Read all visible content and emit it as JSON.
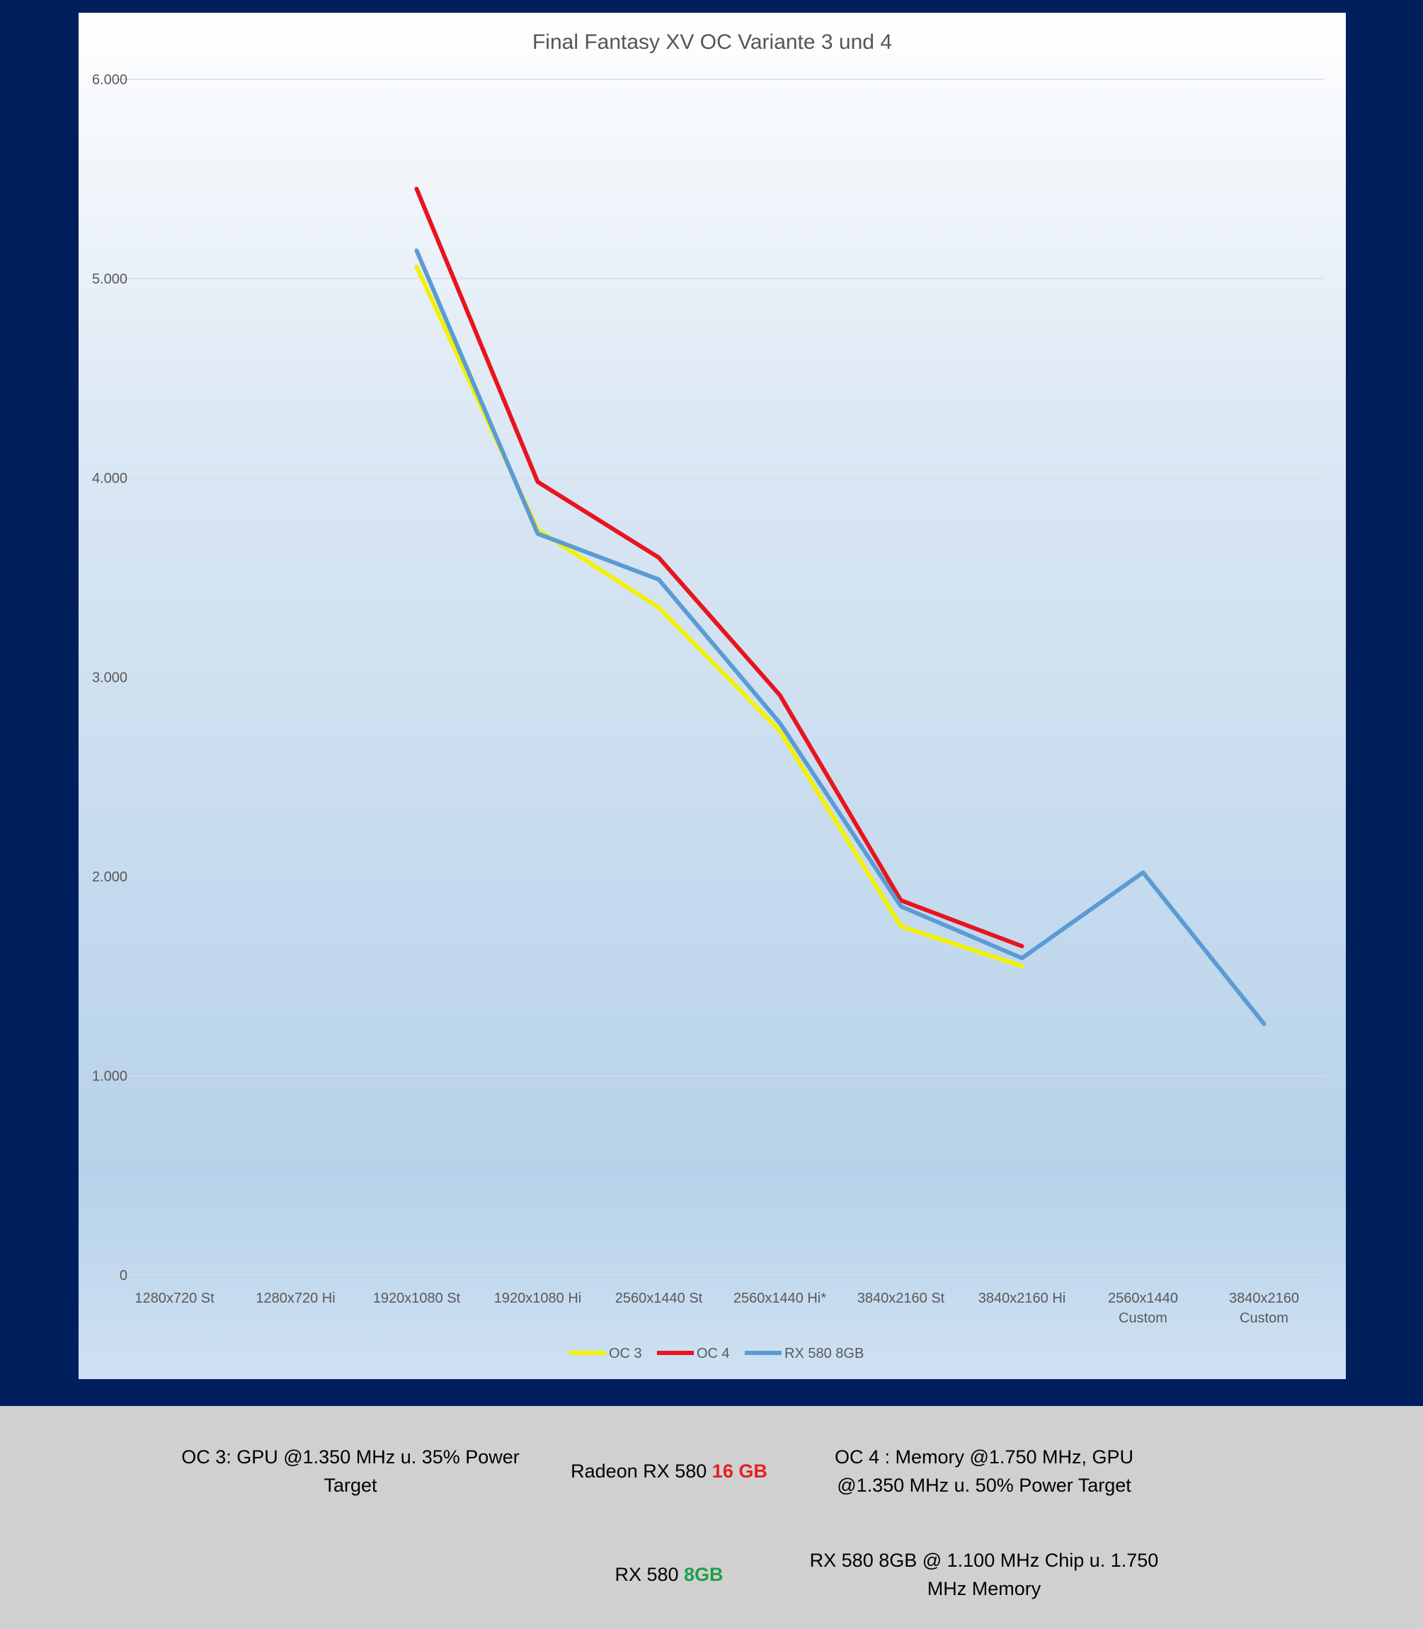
{
  "chart_data": {
    "type": "line",
    "title": "Final Fantasy XV OC Variante 3 und 4",
    "categories": [
      [
        "1280x720 St"
      ],
      [
        "1280x720 Hi"
      ],
      [
        "1920x1080 St"
      ],
      [
        "1920x1080 Hi"
      ],
      [
        "2560x1440 St"
      ],
      [
        "2560x1440 Hi*"
      ],
      [
        "3840x2160 St"
      ],
      [
        "3840x2160 Hi"
      ],
      [
        "2560x1440",
        "Custom"
      ],
      [
        "3840x2160",
        "Custom"
      ]
    ],
    "y_ticks": [
      "0",
      "1.000",
      "2.000",
      "3.000",
      "4.000",
      "5.000",
      "6.000"
    ],
    "ylim": [
      0,
      6000
    ],
    "grid": true,
    "legend_position": "bottom",
    "series": [
      {
        "name": "OC 3",
        "color": "#f2f200",
        "values": [
          null,
          null,
          5060,
          3740,
          3350,
          2730,
          1750,
          1550,
          null,
          null
        ]
      },
      {
        "name": "OC 4",
        "color": "#e8141e",
        "values": [
          null,
          null,
          5450,
          3980,
          3600,
          2910,
          1880,
          1650,
          null,
          null
        ]
      },
      {
        "name": "RX 580 8GB",
        "color": "#5b9bd5",
        "values": [
          null,
          null,
          5140,
          3720,
          3490,
          2770,
          1850,
          1590,
          2020,
          1260
        ]
      }
    ]
  },
  "footer": {
    "oc3_text": "OC 3: GPU @1.350 MHz u. 35% Power Target",
    "radeon_16gb_prefix": "Radeon RX 580 ",
    "radeon_16gb_highlight": "16 GB",
    "oc4_text": "OC 4 : Memory @1.750 MHz, GPU @1.350 MHz u. 50% Power Target",
    "rx580_8gb_prefix": "RX 580 ",
    "rx580_8gb_highlight": "8GB",
    "rx580_8gb_text": "RX 580 8GB @ 1.100 MHz Chip u. 1.750 MHz Memory"
  }
}
